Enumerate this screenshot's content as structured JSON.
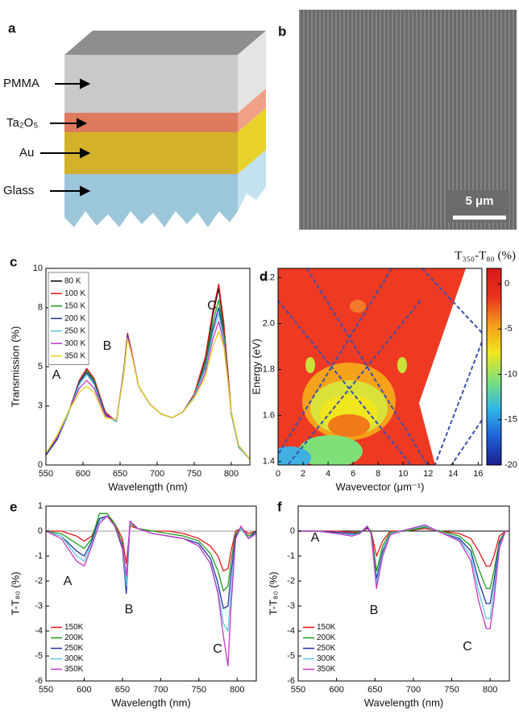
{
  "panel_a": {
    "label": "a",
    "layers": [
      "PMMA",
      "Ta₂O₅",
      "Au",
      "Glass"
    ]
  },
  "panel_b": {
    "label": "b",
    "scale_bar": "5 μm"
  },
  "chart_data": [
    {
      "type": "line",
      "label": "c",
      "xlabel": "Wavelength (nm)",
      "ylabel": "Transmission (%)",
      "xlim": [
        550,
        825
      ],
      "xticks": [
        550,
        600,
        650,
        700,
        750,
        800
      ],
      "ylim": [
        0,
        10
      ],
      "yticks": [
        0,
        3,
        5,
        8,
        10
      ],
      "legend": "upper left",
      "annotations": [
        "A",
        "B",
        "C"
      ],
      "x": [
        550,
        565,
        580,
        595,
        605,
        615,
        630,
        645,
        655,
        660,
        665,
        675,
        690,
        705,
        720,
        735,
        750,
        765,
        775,
        783,
        790,
        800,
        810,
        825
      ],
      "series": [
        {
          "name": "80 K",
          "color": "#000000",
          "values": [
            0.5,
            1.3,
            2.6,
            4.3,
            4.9,
            4.3,
            2.6,
            2.2,
            4.8,
            6.6,
            5.8,
            4.0,
            3.1,
            2.6,
            2.4,
            2.7,
            3.6,
            5.4,
            7.6,
            9.0,
            7.0,
            2.6,
            0.9,
            0.3
          ]
        },
        {
          "name": "100 K",
          "color": "#e8161b",
          "values": [
            0.5,
            1.3,
            2.6,
            4.3,
            4.9,
            4.4,
            2.7,
            2.2,
            4.8,
            6.7,
            5.9,
            4.0,
            3.1,
            2.6,
            2.4,
            2.7,
            3.6,
            5.5,
            7.8,
            9.2,
            7.2,
            2.7,
            0.9,
            0.3
          ]
        },
        {
          "name": "150 K",
          "color": "#1a9e1a",
          "values": [
            0.5,
            1.3,
            2.6,
            4.2,
            4.8,
            4.3,
            2.6,
            2.2,
            4.8,
            6.6,
            5.8,
            4.0,
            3.1,
            2.6,
            2.4,
            2.7,
            3.5,
            5.2,
            7.2,
            8.4,
            6.7,
            2.6,
            0.9,
            0.3
          ]
        },
        {
          "name": "200 K",
          "color": "#1f2fa0",
          "values": [
            0.5,
            1.3,
            2.6,
            4.2,
            4.7,
            4.2,
            2.6,
            2.2,
            4.7,
            6.6,
            5.8,
            4.0,
            3.1,
            2.6,
            2.4,
            2.7,
            3.5,
            5.0,
            6.9,
            8.0,
            6.5,
            2.6,
            0.9,
            0.3
          ]
        },
        {
          "name": "250 K",
          "color": "#5bc8e0",
          "values": [
            0.6,
            1.4,
            2.6,
            4.1,
            4.6,
            4.1,
            2.5,
            2.2,
            4.7,
            6.5,
            5.8,
            4.0,
            3.1,
            2.6,
            2.4,
            2.7,
            3.5,
            4.9,
            6.7,
            7.7,
            6.4,
            2.6,
            0.9,
            0.3
          ]
        },
        {
          "name": "300 K",
          "color": "#c238c2",
          "values": [
            0.6,
            1.4,
            2.7,
            3.9,
            4.3,
            3.9,
            2.5,
            2.3,
            4.7,
            6.5,
            5.8,
            4.0,
            3.1,
            2.6,
            2.4,
            2.7,
            3.4,
            4.7,
            6.4,
            7.3,
            6.2,
            2.7,
            1.0,
            0.3
          ]
        },
        {
          "name": "350 K",
          "color": "#e8d21a",
          "values": [
            0.6,
            1.5,
            2.7,
            3.7,
            4.0,
            3.7,
            2.4,
            2.3,
            4.6,
            6.4,
            5.7,
            4.0,
            3.1,
            2.6,
            2.4,
            2.7,
            3.4,
            4.5,
            6.0,
            6.8,
            6.0,
            2.7,
            1.0,
            0.3
          ]
        }
      ]
    },
    {
      "type": "heatmap",
      "label": "d",
      "xlabel": "Wavevector (μm⁻¹)",
      "ylabel": "Energy (eV)",
      "xlim": [
        0,
        16.3
      ],
      "xticks": [
        0,
        2,
        4,
        6,
        8,
        10,
        12,
        14,
        16
      ],
      "ylim": [
        1.385,
        2.24
      ],
      "yticks": [
        1.4,
        1.6,
        1.8,
        {
          "value": 2,
          "label": "2.0"
        },
        2.2
      ],
      "colorbar": {
        "label": "T₃₅₀-T₈₀ (%)",
        "lim": [
          -20,
          1.7
        ],
        "ticks": [
          -20,
          -15,
          -10,
          -5,
          0
        ],
        "colors": [
          "#1a1f8c",
          "#1f5fd6",
          "#2fb8e8",
          "#7fe07a",
          "#f0e61e",
          "#f59a1a",
          "#e8321e",
          "#d41a1a"
        ]
      },
      "series": [
        {
          "color": "#3c4fae",
          "x": [
            2.3,
            12.0
          ],
          "y": [
            2.24,
            1.38
          ]
        },
        {
          "color": "#3c4fae",
          "x": [
            9.1,
            0
          ],
          "y": [
            2.24,
            1.43
          ]
        },
        {
          "color": "#3c4fae",
          "x": [
            0,
            10.7
          ],
          "y": [
            2.1,
            1.38
          ]
        },
        {
          "color": "#3c4fae",
          "x": [
            11.4,
            0.7
          ],
          "y": [
            2.1,
            1.38
          ]
        },
        {
          "color": "#3c4fae",
          "x": [
            11.5,
            16.3
          ],
          "y": [
            2.24,
            1.96
          ]
        },
        {
          "color": "#3c4fae",
          "x": [
            12.5,
            16.3
          ],
          "y": [
            1.38,
            1.92
          ]
        },
        {
          "color": "#3c4fae",
          "x": [
            13.8,
            16.3
          ],
          "y": [
            1.38,
            1.58
          ]
        }
      ]
    },
    {
      "type": "line",
      "label": "e",
      "xlabel": "Wavelength (nm)",
      "ylabel": "T-T₈₀ (%)",
      "xlim": [
        550,
        825
      ],
      "xticks": [
        550,
        600,
        650,
        700,
        750,
        800
      ],
      "ylim": [
        -6,
        1
      ],
      "yticks": [
        -6,
        -5,
        -4,
        -3,
        -2,
        -1,
        0,
        1
      ],
      "reference_line": 0,
      "reference_color": "#999999",
      "legend": "lower left",
      "annotations": [
        "A",
        "B",
        "C"
      ],
      "x": [
        550,
        570,
        590,
        600,
        610,
        620,
        630,
        640,
        650,
        655,
        660,
        670,
        690,
        710,
        730,
        750,
        765,
        775,
        782,
        788,
        792,
        798,
        805,
        815,
        825
      ],
      "series": [
        {
          "name": "150K",
          "color": "#e8161b",
          "values": [
            0,
            0,
            -0.2,
            -0.4,
            -0.2,
            0.5,
            0.6,
            0.3,
            -0.3,
            -1.3,
            0.2,
            0.1,
            0,
            0,
            -0.1,
            -0.3,
            -0.6,
            -1.0,
            -1.6,
            -1.5,
            -0.8,
            0,
            0.1,
            -0.1,
            0
          ]
        },
        {
          "name": "200K",
          "color": "#1a9e1a",
          "values": [
            0,
            -0.1,
            -0.5,
            -0.7,
            -0.3,
            0.7,
            0.7,
            0.3,
            -0.5,
            -1.9,
            0.3,
            0.1,
            0,
            -0.1,
            -0.2,
            -0.4,
            -0.9,
            -1.6,
            -2.4,
            -2.2,
            -1.2,
            -0.1,
            0.1,
            -0.2,
            0
          ]
        },
        {
          "name": "250K",
          "color": "#1f2fa0",
          "values": [
            0,
            -0.2,
            -0.8,
            -1.0,
            -0.4,
            0.5,
            0.6,
            0.2,
            -0.7,
            -2.5,
            0.4,
            0.1,
            -0.1,
            -0.2,
            -0.3,
            -0.5,
            -1.1,
            -2.1,
            -3.1,
            -3.0,
            -1.7,
            -0.2,
            0.1,
            -0.3,
            0
          ]
        },
        {
          "name": "300K",
          "color": "#5bc8e0",
          "values": [
            0,
            -0.2,
            -1.0,
            -1.2,
            -0.5,
            0.4,
            0.6,
            0.2,
            -0.6,
            -2.2,
            0.4,
            0.1,
            -0.1,
            -0.2,
            -0.3,
            -0.6,
            -1.3,
            -2.4,
            -3.7,
            -4.0,
            -2.4,
            -0.3,
            0.1,
            -0.3,
            -0.1
          ]
        },
        {
          "name": "350K",
          "color": "#c238c2",
          "values": [
            0,
            -0.3,
            -1.2,
            -1.4,
            -0.6,
            0.3,
            0.6,
            0.2,
            -0.6,
            -1.8,
            0.4,
            0.1,
            -0.1,
            -0.2,
            -0.3,
            -0.6,
            -1.3,
            -2.5,
            -4.2,
            -5.4,
            -3.0,
            -0.3,
            0.2,
            -0.3,
            -0.1
          ]
        }
      ]
    },
    {
      "type": "line",
      "label": "f",
      "xlabel": "Wavelength (nm)",
      "ylabel": "T-T₈₀ (%)",
      "xlim": [
        550,
        825
      ],
      "xticks": [
        550,
        600,
        650,
        700,
        750,
        800
      ],
      "ylim": [
        -6,
        1
      ],
      "yticks": [
        -6,
        -5,
        -4,
        -3,
        -2,
        -1,
        0
      ],
      "reference_line": 0,
      "reference_color": "#000000",
      "legend": "lower left",
      "annotations": [
        "A",
        "B",
        "C"
      ],
      "x": [
        550,
        575,
        600,
        620,
        630,
        640,
        645,
        652,
        660,
        670,
        690,
        715,
        735,
        760,
        775,
        785,
        795,
        800,
        805,
        812,
        820,
        825
      ],
      "series": [
        {
          "name": "150K",
          "color": "#e8161b",
          "values": [
            0,
            0,
            0,
            -0.05,
            -0.05,
            0.1,
            0,
            -1.0,
            -0.4,
            0,
            0,
            0.1,
            0,
            -0.1,
            -0.3,
            -0.8,
            -1.4,
            -1.4,
            -1.0,
            -0.2,
            0,
            0
          ]
        },
        {
          "name": "200K",
          "color": "#1a9e1a",
          "values": [
            0,
            0,
            -0.05,
            -0.1,
            -0.05,
            0.15,
            0,
            -1.6,
            -0.6,
            -0.05,
            0,
            0.15,
            0,
            -0.2,
            -0.6,
            -1.5,
            -2.3,
            -2.3,
            -1.6,
            -0.4,
            0,
            0
          ]
        },
        {
          "name": "250K",
          "color": "#1f2fa0",
          "values": [
            0,
            0,
            -0.05,
            -0.1,
            -0.1,
            0.15,
            -0.1,
            -1.9,
            -0.8,
            -0.1,
            0.05,
            0.2,
            -0.05,
            -0.3,
            -0.8,
            -2.0,
            -2.9,
            -2.9,
            -2.0,
            -0.5,
            0,
            0
          ]
        },
        {
          "name": "300K",
          "color": "#5bc8e0",
          "values": [
            0,
            0,
            -0.1,
            -0.15,
            -0.1,
            0.2,
            -0.1,
            -2.1,
            -0.9,
            -0.1,
            0.05,
            0.2,
            -0.05,
            -0.35,
            -1.0,
            -2.4,
            -3.5,
            -3.5,
            -2.4,
            -0.6,
            0,
            0
          ]
        },
        {
          "name": "350K",
          "color": "#c238c2",
          "values": [
            0,
            0,
            -0.1,
            -0.2,
            -0.1,
            0.2,
            -0.1,
            -2.3,
            -1.0,
            -0.15,
            0.05,
            0.25,
            -0.05,
            -0.4,
            -1.2,
            -2.8,
            -3.9,
            -3.9,
            -2.8,
            -0.7,
            0,
            0
          ]
        }
      ]
    }
  ]
}
